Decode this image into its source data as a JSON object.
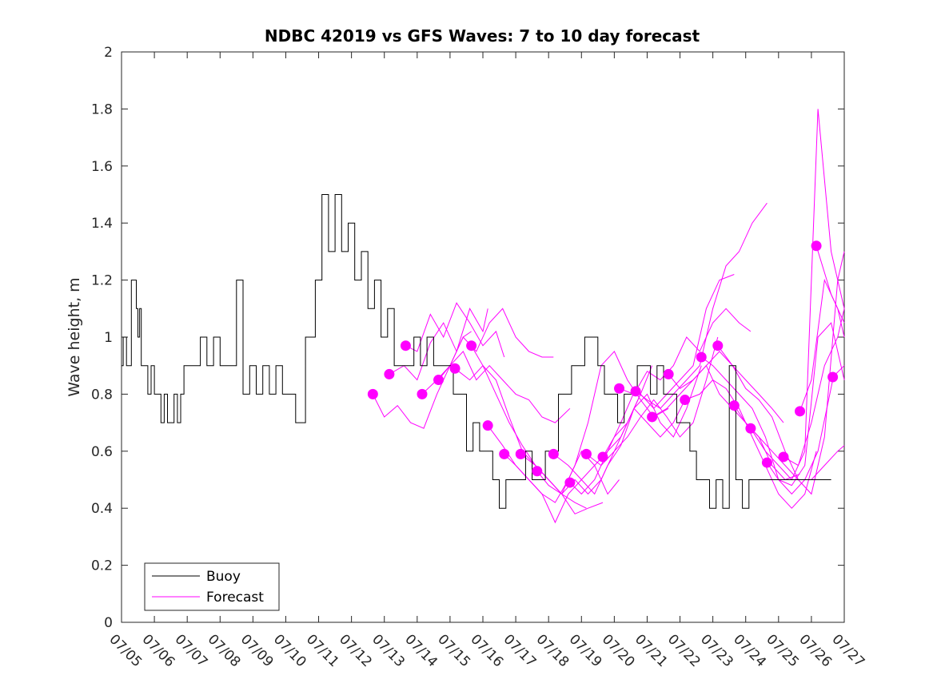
{
  "chart_data": {
    "type": "line",
    "title": "NDBC 42019 vs GFS Waves: 7 to 10 day forecast",
    "xlabel": "",
    "ylabel": "Wave height, m",
    "xlim": [
      "07/05",
      "07/27"
    ],
    "ylim": [
      0,
      2
    ],
    "x_ticks": [
      "07/05",
      "07/06",
      "07/07",
      "07/08",
      "07/09",
      "07/10",
      "07/11",
      "07/12",
      "07/13",
      "07/14",
      "07/15",
      "07/16",
      "07/17",
      "07/18",
      "07/19",
      "07/20",
      "07/21",
      "07/22",
      "07/23",
      "07/24",
      "07/25",
      "07/26",
      "07/27"
    ],
    "y_ticks": [
      "0",
      "0.2",
      "0.4",
      "0.6",
      "0.8",
      "1",
      "1.2",
      "1.4",
      "1.6",
      "1.8",
      "2"
    ],
    "grid": false,
    "legend": {
      "placement": "bottom-left",
      "entries": [
        "Buoy",
        "Forecast"
      ]
    },
    "colors": {
      "buoy": "#000000",
      "forecast": "#ff00ff"
    },
    "buoy": {
      "name": "Buoy",
      "x": [
        0.0,
        0.05,
        0.15,
        0.3,
        0.4,
        0.45,
        0.5,
        0.55,
        0.6,
        0.7,
        0.8,
        0.9,
        1.0,
        1.1,
        1.2,
        1.3,
        1.4,
        1.5,
        1.6,
        1.7,
        1.8,
        1.9,
        2.0,
        2.2,
        2.4,
        2.6,
        2.8,
        3.0,
        3.2,
        3.5,
        3.7,
        3.9,
        4.1,
        4.3,
        4.5,
        4.7,
        4.9,
        5.1,
        5.3,
        5.6,
        5.9,
        6.1,
        6.3,
        6.5,
        6.7,
        6.9,
        7.1,
        7.3,
        7.5,
        7.7,
        7.9,
        8.1,
        8.3,
        8.5,
        8.7,
        8.9,
        9.1,
        9.3,
        9.5,
        9.7,
        9.9,
        10.1,
        10.3,
        10.5,
        10.7,
        10.9,
        11.1,
        11.3,
        11.5,
        11.7,
        11.9,
        12.1,
        12.3,
        12.5,
        12.7,
        12.9,
        13.1,
        13.3,
        13.5,
        13.7,
        13.9,
        14.1,
        14.3,
        14.5,
        14.7,
        14.9,
        15.1,
        15.3,
        15.5,
        15.7,
        15.9,
        16.1,
        16.3,
        16.5,
        16.7,
        16.9,
        17.1,
        17.3,
        17.5,
        17.7,
        17.9,
        18.1,
        18.3,
        18.5,
        18.7,
        18.9,
        19.1,
        19.3,
        19.5,
        19.7,
        19.9,
        20.1,
        20.3,
        20.5,
        20.7,
        20.9,
        21.1,
        21.3,
        21.5,
        21.6
      ],
      "y": [
        0.9,
        1.0,
        0.9,
        1.2,
        1.2,
        1.1,
        1.0,
        1.1,
        0.9,
        0.9,
        0.8,
        0.9,
        0.8,
        0.8,
        0.7,
        0.8,
        0.7,
        0.7,
        0.8,
        0.7,
        0.8,
        0.9,
        0.9,
        0.9,
        1.0,
        0.9,
        1.0,
        0.9,
        0.9,
        1.2,
        0.8,
        0.9,
        0.8,
        0.9,
        0.8,
        0.9,
        0.8,
        0.8,
        0.7,
        1.0,
        1.2,
        1.5,
        1.3,
        1.5,
        1.3,
        1.4,
        1.2,
        1.3,
        1.1,
        1.2,
        1.0,
        1.1,
        0.9,
        0.9,
        0.9,
        1.0,
        0.9,
        1.0,
        0.9,
        0.9,
        0.9,
        0.8,
        0.8,
        0.6,
        0.7,
        0.6,
        0.6,
        0.5,
        0.4,
        0.5,
        0.5,
        0.5,
        0.6,
        0.5,
        0.5,
        0.6,
        0.6,
        0.8,
        0.8,
        0.9,
        0.9,
        1.0,
        1.0,
        0.9,
        0.8,
        0.8,
        0.7,
        0.8,
        0.8,
        0.9,
        0.9,
        0.8,
        0.9,
        0.8,
        0.8,
        0.7,
        0.7,
        0.6,
        0.5,
        0.5,
        0.4,
        0.5,
        0.4,
        0.9,
        0.5,
        0.4,
        0.5,
        0.5,
        0.5,
        0.5,
        0.5,
        0.5,
        0.5,
        0.5,
        0.5,
        0.5,
        0.5,
        0.5,
        0.5,
        0.5
      ]
    },
    "forecast_markers": {
      "x": [
        7.65,
        8.15,
        8.65,
        9.15,
        9.65,
        10.15,
        10.65,
        11.15,
        11.65,
        12.15,
        12.65,
        13.15,
        13.65,
        14.15,
        14.65,
        15.15,
        15.65,
        16.15,
        16.65,
        17.15,
        17.65,
        18.15,
        18.65,
        19.15,
        19.65,
        20.15,
        20.65,
        21.15,
        21.65
      ],
      "y": [
        0.8,
        0.87,
        0.97,
        0.8,
        0.85,
        0.89,
        0.97,
        0.69,
        0.59,
        0.59,
        0.53,
        0.59,
        0.49,
        0.59,
        0.58,
        0.82,
        0.81,
        0.72,
        0.87,
        0.78,
        0.93,
        0.97,
        0.76,
        0.68,
        0.56,
        0.58,
        0.74,
        1.32,
        0.86
      ]
    },
    "forecast_series": [
      {
        "x": [
          7.65,
          8.0,
          8.4,
          8.8,
          9.2,
          9.6,
          10.0,
          10.4,
          10.65
        ],
        "y": [
          0.8,
          0.72,
          0.76,
          0.7,
          0.68,
          0.8,
          0.9,
          1.0,
          1.02
        ]
      },
      {
        "x": [
          8.15,
          8.6,
          9.0,
          9.4,
          9.8,
          10.2,
          10.6,
          11.0,
          11.15
        ],
        "y": [
          0.87,
          0.9,
          0.85,
          0.98,
          1.05,
          0.95,
          1.1,
          1.02,
          1.1
        ]
      },
      {
        "x": [
          8.65,
          9.0,
          9.4,
          9.8,
          10.2,
          10.6,
          11.0,
          11.4,
          11.65
        ],
        "y": [
          0.97,
          0.95,
          1.08,
          1.0,
          1.12,
          1.05,
          0.97,
          1.02,
          0.93
        ]
      },
      {
        "x": [
          9.15,
          9.6,
          10.0,
          10.4,
          10.8,
          11.2,
          11.6,
          12.0,
          12.4,
          12.8,
          13.15
        ],
        "y": [
          0.8,
          0.85,
          0.9,
          1.0,
          0.95,
          1.05,
          1.1,
          1.0,
          0.95,
          0.93,
          0.93
        ]
      },
      {
        "x": [
          9.65,
          10.0,
          10.4,
          10.8,
          11.2,
          11.6,
          12.0,
          12.4,
          12.8,
          13.2,
          13.65
        ],
        "y": [
          0.85,
          0.9,
          0.95,
          0.85,
          0.9,
          0.85,
          0.8,
          0.78,
          0.72,
          0.7,
          0.75
        ]
      },
      {
        "x": [
          10.15,
          10.6,
          11.0,
          11.4,
          11.8,
          12.2,
          12.6,
          13.0,
          13.4,
          13.8,
          14.15
        ],
        "y": [
          0.89,
          0.85,
          0.9,
          0.8,
          0.7,
          0.62,
          0.55,
          0.5,
          0.45,
          0.42,
          0.4
        ]
      },
      {
        "x": [
          10.65,
          11.0,
          11.4,
          11.8,
          12.2,
          12.6,
          13.0,
          13.4,
          13.8,
          14.2,
          14.65
        ],
        "y": [
          0.97,
          0.9,
          0.85,
          0.72,
          0.6,
          0.55,
          0.5,
          0.45,
          0.38,
          0.4,
          0.42
        ]
      },
      {
        "x": [
          11.15,
          11.6,
          12.0,
          12.4,
          12.8,
          13.2,
          13.6,
          14.0,
          14.4,
          14.8,
          15.15
        ],
        "y": [
          0.69,
          0.62,
          0.55,
          0.5,
          0.45,
          0.35,
          0.45,
          0.5,
          0.55,
          0.45,
          0.5
        ]
      },
      {
        "x": [
          11.65,
          12.0,
          12.4,
          12.8,
          13.2,
          13.6,
          14.0,
          14.4,
          14.8,
          15.2,
          15.65
        ],
        "y": [
          0.59,
          0.55,
          0.5,
          0.45,
          0.42,
          0.5,
          0.6,
          0.55,
          0.6,
          0.7,
          0.82
        ]
      },
      {
        "x": [
          12.15,
          12.6,
          13.0,
          13.4,
          13.8,
          14.2,
          14.6,
          15.0,
          15.4,
          15.8,
          16.15
        ],
        "y": [
          0.59,
          0.55,
          0.5,
          0.45,
          0.5,
          0.45,
          0.5,
          0.6,
          0.7,
          0.8,
          0.9
        ]
      },
      {
        "x": [
          12.65,
          13.0,
          13.4,
          13.8,
          14.2,
          14.6,
          15.0,
          15.4,
          15.8,
          16.2,
          16.65
        ],
        "y": [
          0.53,
          0.48,
          0.45,
          0.55,
          0.7,
          0.9,
          0.95,
          0.85,
          0.78,
          0.72,
          0.75
        ]
      },
      {
        "x": [
          13.15,
          13.6,
          14.0,
          14.4,
          14.8,
          15.2,
          15.6,
          16.0,
          16.4,
          16.8,
          17.15
        ],
        "y": [
          0.59,
          0.55,
          0.5,
          0.45,
          0.55,
          0.62,
          0.75,
          0.7,
          0.65,
          0.7,
          0.78
        ]
      },
      {
        "x": [
          13.65,
          14.0,
          14.4,
          14.8,
          15.2,
          15.6,
          16.0,
          16.4,
          16.8,
          17.2,
          17.65
        ],
        "y": [
          0.49,
          0.45,
          0.5,
          0.6,
          0.65,
          0.75,
          0.8,
          0.7,
          0.65,
          0.75,
          0.9
        ]
      },
      {
        "x": [
          14.15,
          14.6,
          15.0,
          15.4,
          15.8,
          16.2,
          16.6,
          17.0,
          17.4,
          17.8,
          18.15
        ],
        "y": [
          0.59,
          0.55,
          0.6,
          0.65,
          0.72,
          0.78,
          0.72,
          0.65,
          0.7,
          0.85,
          1.0
        ]
      },
      {
        "x": [
          14.65,
          15.0,
          15.4,
          15.8,
          16.2,
          16.6,
          17.0,
          17.4,
          17.8,
          18.2,
          18.65
        ],
        "y": [
          0.58,
          0.65,
          0.7,
          0.8,
          0.75,
          0.8,
          0.85,
          0.9,
          1.1,
          1.2,
          1.22
        ]
      },
      {
        "x": [
          15.15,
          15.6,
          16.0,
          16.4,
          16.8,
          17.2,
          17.6,
          18.0,
          18.4,
          18.8,
          19.15
        ],
        "y": [
          0.82,
          0.8,
          0.88,
          0.85,
          0.9,
          1.0,
          0.95,
          1.05,
          1.1,
          1.05,
          1.02
        ]
      },
      {
        "x": [
          15.65,
          16.0,
          16.4,
          16.8,
          17.2,
          17.6,
          18.0,
          18.4,
          18.8,
          19.2,
          19.65
        ],
        "y": [
          0.81,
          0.78,
          0.75,
          0.8,
          0.85,
          0.9,
          1.1,
          1.25,
          1.3,
          1.4,
          1.47
        ]
      },
      {
        "x": [
          16.15,
          16.6,
          17.0,
          17.4,
          17.8,
          18.2,
          18.6,
          19.0,
          19.4,
          19.8,
          20.15
        ],
        "y": [
          0.72,
          0.75,
          0.8,
          0.85,
          0.9,
          0.95,
          0.9,
          0.85,
          0.8,
          0.75,
          0.7
        ]
      },
      {
        "x": [
          16.65,
          17.0,
          17.4,
          17.8,
          18.2,
          18.6,
          19.0,
          19.4,
          19.8,
          20.2,
          20.65
        ],
        "y": [
          0.87,
          0.82,
          0.85,
          0.9,
          0.8,
          0.75,
          0.7,
          0.65,
          0.55,
          0.5,
          0.52
        ]
      },
      {
        "x": [
          17.15,
          17.6,
          18.0,
          18.4,
          18.8,
          19.2,
          19.6,
          20.0,
          20.4,
          20.8,
          21.15
        ],
        "y": [
          0.78,
          0.8,
          0.85,
          0.82,
          0.75,
          0.65,
          0.55,
          0.45,
          0.4,
          0.45,
          0.6
        ]
      },
      {
        "x": [
          17.65,
          18.0,
          18.4,
          18.8,
          19.2,
          19.6,
          20.0,
          20.4,
          20.8,
          21.2,
          21.65
        ],
        "y": [
          0.93,
          0.9,
          0.85,
          0.8,
          0.75,
          0.65,
          0.5,
          0.45,
          0.5,
          0.6,
          0.85
        ]
      },
      {
        "x": [
          18.15,
          18.6,
          19.0,
          19.4,
          19.8,
          20.2,
          20.6,
          21.0,
          21.4,
          21.8,
          22.0
        ],
        "y": [
          0.97,
          0.9,
          0.82,
          0.78,
          0.72,
          0.6,
          0.5,
          0.5,
          0.55,
          0.6,
          0.62
        ]
      },
      {
        "x": [
          18.65,
          19.0,
          19.4,
          19.8,
          20.2,
          20.6,
          21.0,
          21.4,
          21.8,
          22.0
        ],
        "y": [
          0.76,
          0.7,
          0.65,
          0.6,
          0.55,
          0.5,
          0.45,
          0.65,
          1.2,
          1.3
        ]
      },
      {
        "x": [
          19.15,
          19.6,
          20.0,
          20.4,
          20.8,
          21.2,
          21.6,
          22.0
        ],
        "y": [
          0.68,
          0.6,
          0.55,
          0.5,
          0.6,
          1.8,
          1.3,
          1.1
        ]
      },
      {
        "x": [
          19.65,
          20.0,
          20.4,
          20.8,
          21.2,
          21.6,
          22.0
        ],
        "y": [
          0.56,
          0.5,
          0.48,
          0.55,
          1.0,
          1.05,
          0.85
        ]
      },
      {
        "x": [
          20.15,
          20.6,
          21.0,
          21.4,
          21.8,
          22.0
        ],
        "y": [
          0.58,
          0.55,
          0.7,
          0.9,
          1.0,
          1.1
        ]
      },
      {
        "x": [
          20.65,
          21.0,
          21.4,
          21.8,
          22.0
        ],
        "y": [
          0.74,
          0.85,
          1.2,
          1.1,
          1.0
        ]
      },
      {
        "x": [
          21.15,
          21.6,
          22.0
        ],
        "y": [
          1.32,
          1.15,
          1.05
        ]
      },
      {
        "x": [
          21.65,
          22.0
        ],
        "y": [
          0.86,
          0.9
        ]
      }
    ]
  }
}
